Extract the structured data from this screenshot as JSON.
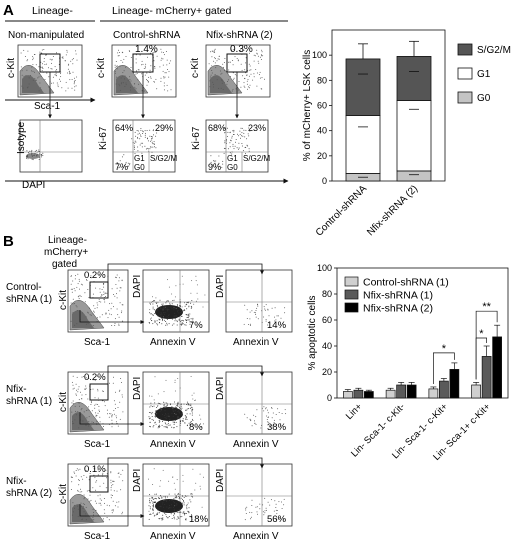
{
  "panel_a": {
    "letter": "A",
    "lineage_neg": "Lineage-",
    "lineage_gated": "Lineage- mCherry+ gated",
    "columns": [
      "Non-manipulated",
      "Control-shRNA",
      "Nfix-shRNA (2)"
    ],
    "ckit": "c-Kit",
    "sca1": "Sca-1",
    "gate_pcts": [
      "1.4%",
      "0.3%"
    ],
    "isotype": "Isotype",
    "dapi": "DAPI",
    "ki67": "Ki-67",
    "control_quads": {
      "tl": "64%",
      "tr": "29%",
      "bl": "7%"
    },
    "nfix_quads": {
      "tl": "68%",
      "tr": "23%",
      "bl": "9%"
    },
    "g1": "G1",
    "g0": "G0",
    "sg2m": "S/G2/M"
  },
  "chart_a": {
    "type": "bar",
    "stacked": true,
    "ylabel": "% of mCherry+ LSK cells",
    "categories": [
      "Control-shRNA",
      "Nfix-shRNA (2)"
    ],
    "yticks": [
      0,
      20,
      40,
      60,
      80,
      100
    ],
    "ylim": [
      0,
      120
    ],
    "series": [
      {
        "name": "G0",
        "values": [
          6,
          8
        ],
        "err": [
          3,
          3
        ],
        "color": "#c4c4c4"
      },
      {
        "name": "G1",
        "values": [
          46,
          56
        ],
        "err": [
          9,
          7
        ],
        "color": "#ffffff"
      },
      {
        "name": "S/G2/M",
        "values": [
          45,
          35
        ],
        "err": [
          12,
          12
        ],
        "color": "#555555"
      }
    ],
    "legend_order": [
      "S/G2/M",
      "G1",
      "G0"
    ]
  },
  "panel_b": {
    "letter": "B",
    "gating": [
      "Lineage-",
      "mCherry+",
      "gated"
    ],
    "rows": [
      {
        "label": [
          "Control-",
          "shRNA (1)"
        ],
        "gate": "0.2%",
        "annexin": "7%",
        "dapi_pos": "14%"
      },
      {
        "label": [
          "Nfix-",
          "shRNA (1)"
        ],
        "gate": "0.2%",
        "annexin": "8%",
        "dapi_pos": "38%"
      },
      {
        "label": [
          "Nfix-",
          "shRNA (2)"
        ],
        "gate": "0.1%",
        "annexin": "18%",
        "dapi_pos": "56%"
      }
    ],
    "ckit": "c-Kit",
    "sca1": "Sca-1",
    "dapi": "DAPI",
    "annexin": "Annexin V"
  },
  "chart_b": {
    "type": "bar",
    "ylabel": "% apoptotic cells",
    "categories": [
      "Lin+",
      "Lin- Sca-1- c-Kit-",
      "Lin- Sca-1- c-Kit+",
      "Lin- Sca-1+ c-Kit+"
    ],
    "yticks": [
      0,
      20,
      40,
      60,
      80,
      100
    ],
    "ylim": [
      0,
      100
    ],
    "series": [
      {
        "name": "Control-shRNA (1)",
        "values": [
          5,
          6,
          7,
          10
        ],
        "err": [
          1.5,
          1.5,
          1.5,
          2
        ],
        "color": "#cfcfcf"
      },
      {
        "name": "Nfix-shRNA (1)",
        "values": [
          6,
          10,
          13,
          32
        ],
        "err": [
          1.5,
          2,
          2,
          8
        ],
        "color": "#5a5a5a"
      },
      {
        "name": "Nfix-shRNA (2)",
        "values": [
          5,
          10,
          22,
          47
        ],
        "err": [
          1,
          2,
          5,
          9
        ],
        "color": "#000000"
      }
    ],
    "significance": [
      "*",
      "*",
      "**"
    ]
  }
}
